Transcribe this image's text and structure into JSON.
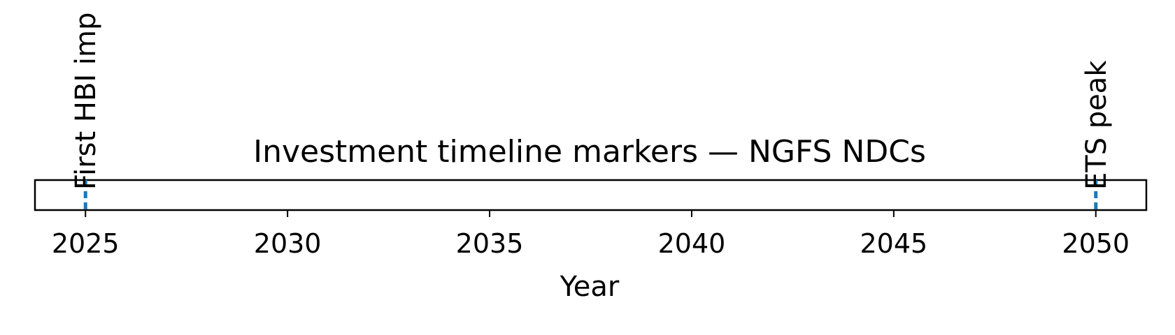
{
  "chart_data": {
    "type": "timeline",
    "title": "Investment timeline markers — NGFS NDCs",
    "xlabel": "Year",
    "xlim": [
      2023.75,
      2051.25
    ],
    "xticks": [
      2025,
      2030,
      2035,
      2040,
      2045,
      2050
    ],
    "xtick_labels": [
      "2025",
      "2030",
      "2035",
      "2040",
      "2045",
      "2050"
    ],
    "events": [
      {
        "year": 2025,
        "label": "First HBI imp"
      },
      {
        "year": 2050,
        "label": "ETS peak"
      }
    ],
    "marker_color": "#1f77b4",
    "grid": false,
    "legend": "none"
  }
}
